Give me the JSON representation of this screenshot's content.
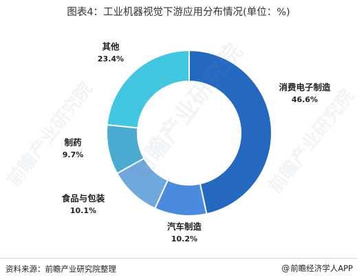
{
  "chart_data": {
    "type": "pie",
    "variant": "donut",
    "title": "图表4：工业机器视觉下游应用分布情况(单位：%)",
    "categories": [
      "消费电子制造",
      "汽车制造",
      "食品与包装",
      "制药",
      "其他"
    ],
    "values": [
      46.6,
      10.2,
      10.1,
      9.7,
      23.4
    ],
    "value_labels": [
      "46.6%",
      "10.2%",
      "10.1%",
      "9.7%",
      "23.4%"
    ],
    "colors": [
      "#2468c0",
      "#4a8be0",
      "#6fa8dc",
      "#4aaad0",
      "#43c6e0"
    ],
    "legend": "none"
  },
  "footer": {
    "source": "资料来源：前瞻产业研究院整理",
    "brand": "前瞻经济学人APP",
    "at_symbol": "@"
  },
  "watermark": "前瞻产业研究院"
}
